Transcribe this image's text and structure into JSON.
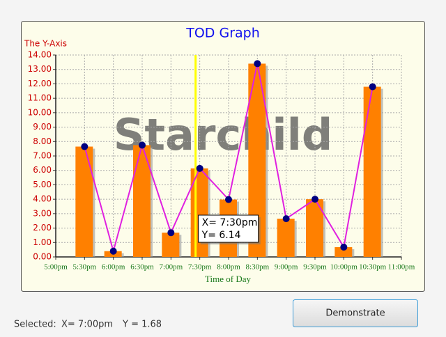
{
  "chart_data": {
    "type": "bar_line",
    "title": "TOD Graph",
    "watermark": "Starchild",
    "x_label": "Time of Day",
    "y_label": "The Y-Axis",
    "categories": [
      "5:00pm",
      "5:30pm",
      "6:00pm",
      "6:30pm",
      "7:00pm",
      "7:30pm",
      "8:00pm",
      "8:30pm",
      "9:00pm",
      "9:30pm",
      "10:00pm",
      "10:30pm",
      "11:00pm"
    ],
    "values": [
      null,
      7.65,
      0.4,
      7.75,
      1.68,
      6.14,
      3.98,
      13.4,
      2.65,
      4.0,
      0.68,
      11.8,
      null
    ],
    "bar_color": "#ff8000",
    "line_color": "#e020e0",
    "marker_color": "#000080",
    "ylim": [
      0,
      14
    ],
    "yticks": [
      {
        "value": 0,
        "label": "0.00"
      },
      {
        "value": 1,
        "label": "1.00"
      },
      {
        "value": 2,
        "label": "2.00"
      },
      {
        "value": 3,
        "label": "3.00"
      },
      {
        "value": 4,
        "label": "4.00"
      },
      {
        "value": 5,
        "label": "5.00"
      },
      {
        "value": 6,
        "label": "6.00"
      },
      {
        "value": 7,
        "label": "7.00"
      },
      {
        "value": 8,
        "label": "8.00"
      },
      {
        "value": 9,
        "label": "9.00"
      },
      {
        "value": 10,
        "label": "10.00"
      },
      {
        "value": 11,
        "label": "11.00"
      },
      {
        "value": 12,
        "label": "12.00"
      },
      {
        "value": 13,
        "label": "13.00"
      },
      {
        "value": 14,
        "label": "14.00"
      }
    ],
    "grid": true,
    "cursor_color": "#ffff00",
    "tooltip": [
      "X= 7:30pm",
      "Y= 6.14"
    ]
  },
  "controls": {
    "button": "Demonstrate",
    "status": {
      "label": "Selected:",
      "x": "X= 7:00pm",
      "y": "Y = 1.68"
    }
  }
}
